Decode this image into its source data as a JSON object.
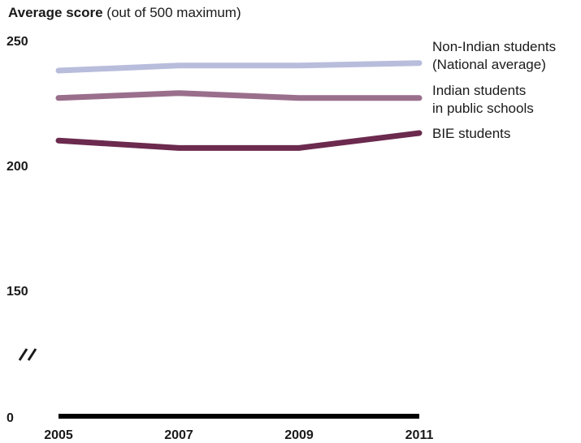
{
  "chart_data": {
    "type": "line",
    "title": "Average score",
    "subtitle": "(out of 500 maximum)",
    "x": [
      "2005",
      "2007",
      "2009",
      "2011"
    ],
    "y_ticks": [
      "250",
      "200",
      "150",
      "0"
    ],
    "axis_break": true,
    "ylim": [
      150,
      250
    ],
    "series": [
      {
        "name": "Non-Indian students (National average)",
        "legend_lines": [
          "Non-Indian students",
          "(National average)"
        ],
        "values": [
          238,
          240,
          240,
          241
        ],
        "color": "#b9bddc"
      },
      {
        "name": "Indian students in public schools",
        "legend_lines": [
          "Indian students",
          "in public schools"
        ],
        "values": [
          227,
          229,
          227,
          227
        ],
        "color": "#9a6f8c"
      },
      {
        "name": "BIE students",
        "legend_lines": [
          "BIE students"
        ],
        "values": [
          210,
          207,
          207,
          213
        ],
        "color": "#6b2a4e"
      }
    ]
  }
}
